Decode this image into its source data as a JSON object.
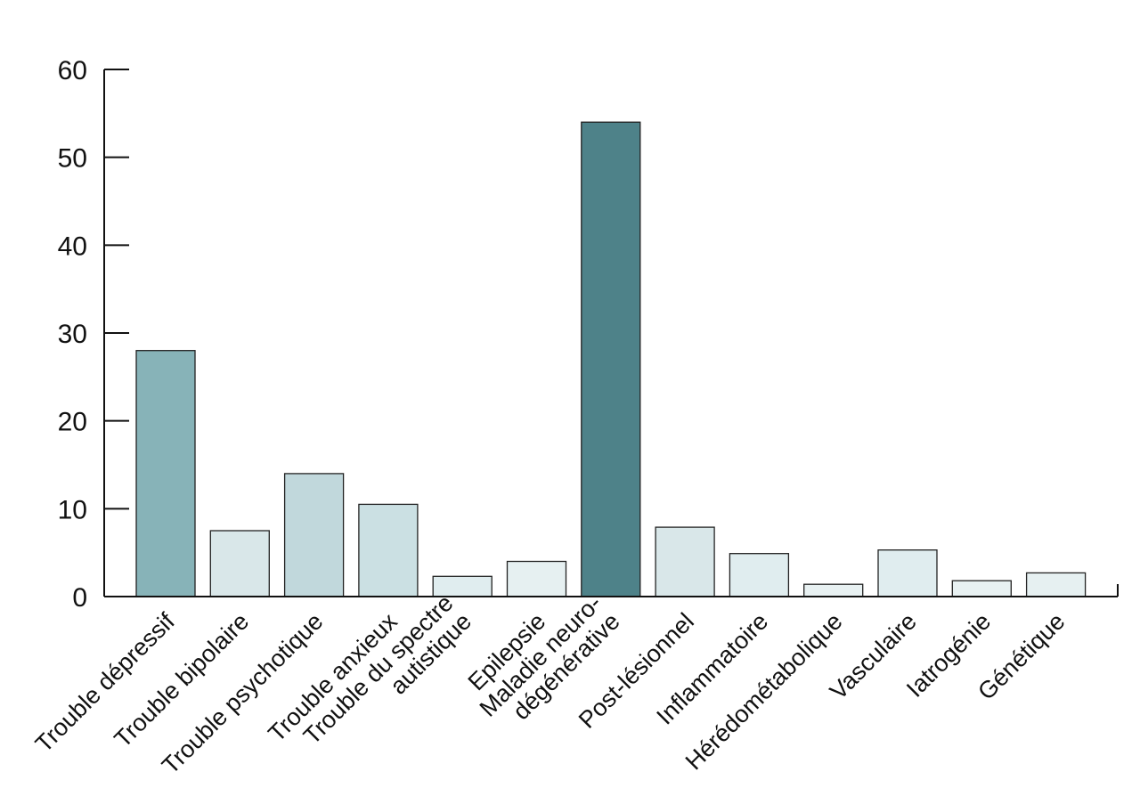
{
  "chart_data": {
    "type": "bar",
    "title": "",
    "xlabel": "",
    "ylabel": "",
    "ylim": [
      0,
      60
    ],
    "yticks": [
      0,
      10,
      20,
      30,
      40,
      50,
      60
    ],
    "grid": false,
    "legend": "none",
    "categories": [
      [
        "Trouble dépressif"
      ],
      [
        "Trouble bipolaire"
      ],
      [
        "Trouble psychotique"
      ],
      [
        "Trouble anxieux"
      ],
      [
        "Trouble du spectre",
        "autistique"
      ],
      [
        "Epilepsie"
      ],
      [
        "Maladie neuro-",
        "dégénérative"
      ],
      [
        "Post-lésionnel"
      ],
      [
        "Inflammatoire"
      ],
      [
        "Hérédométabolique"
      ],
      [
        "Vasculaire"
      ],
      [
        "Iatrogénie"
      ],
      [
        "Génétique"
      ]
    ],
    "values": [
      28,
      7.5,
      14,
      10.5,
      2.3,
      4,
      54,
      7.9,
      4.9,
      1.4,
      5.3,
      1.8,
      2.7
    ],
    "bar_colors": [
      "#87b3b8",
      "#d9e7e9",
      "#c1d8dc",
      "#cbe0e3",
      "#e0edef",
      "#e6f0f1",
      "#4e8289",
      "#d9e7e9",
      "#e0edef",
      "#e8f1f2",
      "#e0edef",
      "#e8f1f2",
      "#e6f0f1"
    ],
    "axis_color": "#111111",
    "bar_stroke": "#222222"
  }
}
